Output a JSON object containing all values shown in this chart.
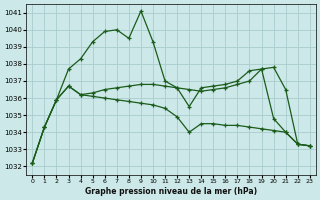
{
  "title": "Graphe pression niveau de la mer (hPa)",
  "background_color": "#cce8e8",
  "grid_color": "#aacccc",
  "line_color": "#1a5c1a",
  "xlim": [
    -0.5,
    23.5
  ],
  "ylim": [
    1031.5,
    1041.5
  ],
  "yticks": [
    1032,
    1033,
    1034,
    1035,
    1036,
    1037,
    1038,
    1039,
    1040,
    1041
  ],
  "xticks": [
    0,
    1,
    2,
    3,
    4,
    5,
    6,
    7,
    8,
    9,
    10,
    11,
    12,
    13,
    14,
    15,
    16,
    17,
    18,
    19,
    20,
    21,
    22,
    23
  ],
  "seriesA_x": [
    0,
    1,
    2,
    3,
    4,
    5,
    6,
    7,
    8,
    9,
    10,
    11,
    12,
    13,
    14,
    15,
    16,
    17,
    18,
    19,
    20,
    21,
    22,
    23
  ],
  "seriesA_y": [
    1032.2,
    1034.3,
    1035.9,
    1037.7,
    1038.3,
    1039.3,
    1039.9,
    1040.0,
    1039.5,
    1041.1,
    1039.3,
    1037.0,
    1036.6,
    1035.5,
    1036.6,
    1036.7,
    1036.8,
    1037.0,
    1037.6,
    1037.7,
    1034.8,
    1034.0,
    1033.3,
    1033.2
  ],
  "seriesB_x": [
    0,
    1,
    2,
    3,
    4,
    5,
    6,
    7,
    8,
    9,
    10,
    11,
    12,
    13,
    14,
    15,
    16,
    17,
    18,
    19,
    20,
    21,
    22,
    23
  ],
  "seriesB_y": [
    1032.2,
    1034.3,
    1035.9,
    1036.7,
    1036.2,
    1036.3,
    1036.5,
    1036.6,
    1036.7,
    1036.8,
    1036.8,
    1036.7,
    1036.6,
    1036.5,
    1036.4,
    1036.5,
    1036.6,
    1036.8,
    1037.0,
    1037.7,
    1037.8,
    1036.5,
    1033.3,
    1033.2
  ],
  "seriesC_x": [
    0,
    1,
    2,
    3,
    4,
    5,
    6,
    7,
    8,
    9,
    10,
    11,
    12,
    13,
    14,
    15,
    16,
    17,
    18,
    19,
    20,
    21,
    22,
    23
  ],
  "seriesC_y": [
    1032.2,
    1034.3,
    1035.9,
    1036.7,
    1036.2,
    1036.1,
    1036.0,
    1035.9,
    1035.8,
    1035.7,
    1035.6,
    1035.4,
    1034.9,
    1034.0,
    1034.5,
    1034.5,
    1034.4,
    1034.4,
    1034.3,
    1034.2,
    1034.1,
    1034.0,
    1033.3,
    1033.2
  ]
}
